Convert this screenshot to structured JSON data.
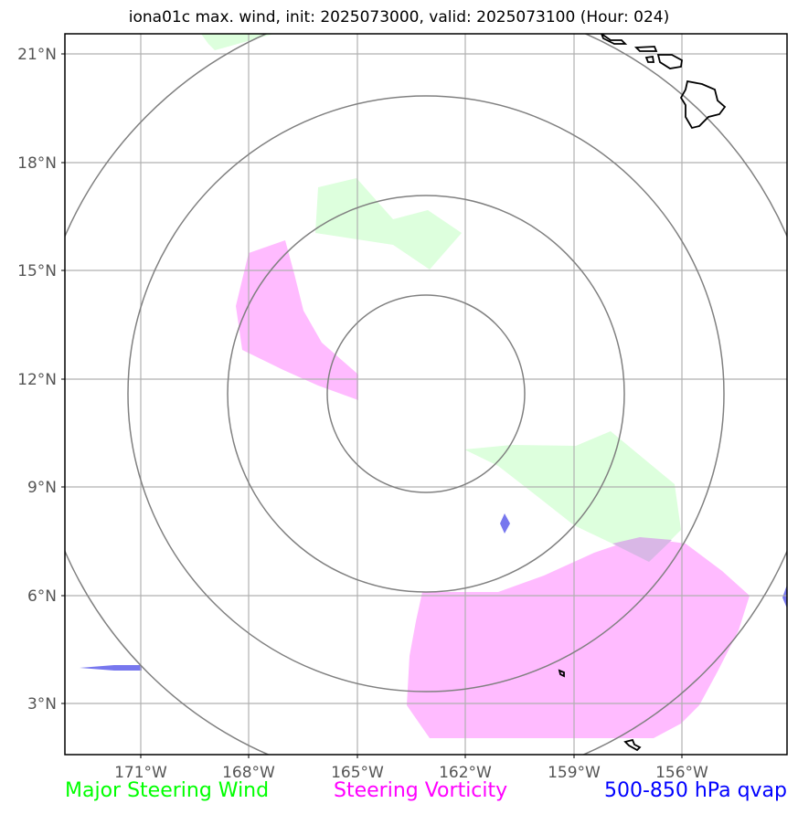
{
  "title": "iona01c max. wind, init: 2025073000, valid: 2025073100 (Hour: 024)",
  "axes": {
    "x_ticks": [
      "171°W",
      "168°W",
      "165°W",
      "162°W",
      "159°W",
      "156°W"
    ],
    "y_ticks": [
      "21°N",
      "18°N",
      "15°N",
      "12°N",
      "9°N",
      "6°N",
      "3°N"
    ]
  },
  "legend": {
    "wind": {
      "label": "Major Steering Wind",
      "color": "#00ff00"
    },
    "vorticity": {
      "label": "Steering Vorticity",
      "color": "#ff00ff"
    },
    "qvap": {
      "label": "500-850 hPa qvap",
      "color": "#0000ff"
    }
  },
  "map": {
    "extent": {
      "lon": [
        -173.1,
        -153.1
      ],
      "lat": [
        1.4,
        21.6
      ]
    },
    "storm_center": {
      "lon": -163.0,
      "lat": 11.6
    },
    "range_ring_radii_deg_lat": [
      2.7,
      5.5,
      8.25,
      10.9
    ],
    "fill_colors": {
      "wind": "#ddffdd",
      "vorticity": "#ffbbff",
      "qvap": "#7777ee"
    },
    "grid": true
  }
}
